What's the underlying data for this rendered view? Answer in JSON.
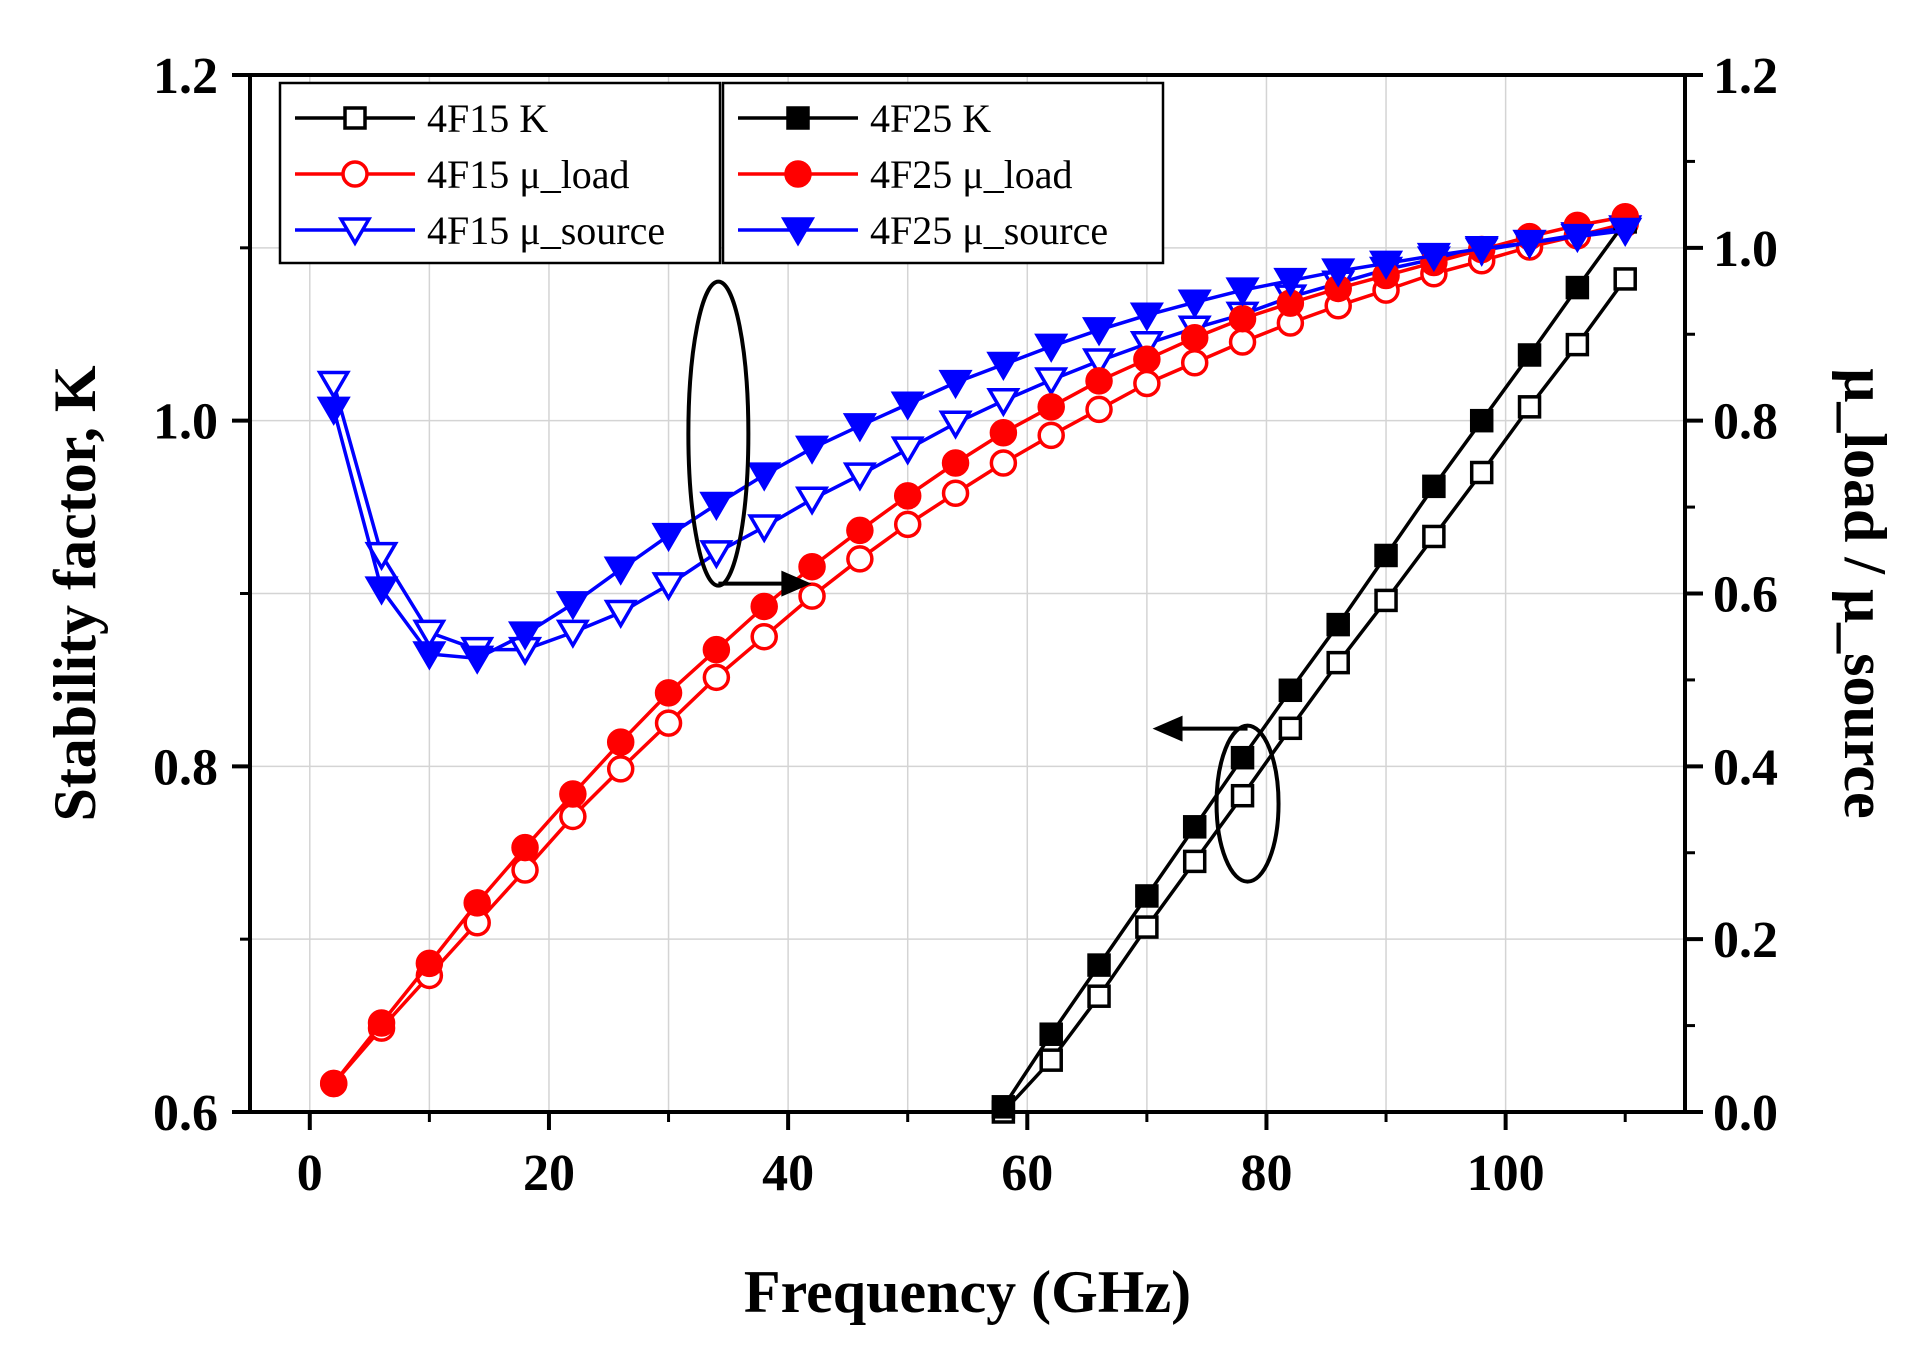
{
  "chart_data": {
    "type": "line",
    "xlabel": "Frequency (GHz)",
    "ylabel_left": "Stability factor, K",
    "ylabel_right": "μ_load / μ_source",
    "xlim": [
      -5,
      115
    ],
    "ylim_left": [
      0.6,
      1.2
    ],
    "ylim_right": [
      0.0,
      1.2
    ],
    "x_ticks": [
      "0",
      "20",
      "40",
      "60",
      "80",
      "100"
    ],
    "y_left_ticks": [
      "0.6",
      "0.8",
      "1.0",
      "1.2"
    ],
    "y_right_ticks": [
      "0.0",
      "0.2",
      "0.4",
      "0.6",
      "0.8",
      "1.0",
      "1.2"
    ],
    "grid": true,
    "legend_placement": "top-left",
    "series": [
      {
        "name": "4F15 K",
        "axis": "left",
        "color": "#000000",
        "marker": "square",
        "filled": false,
        "x": [
          58,
          62,
          66,
          70,
          74,
          78,
          82,
          86,
          90,
          94,
          98,
          102,
          106,
          110
        ],
        "values": [
          0.6,
          0.63,
          0.667,
          0.707,
          0.745,
          0.783,
          0.822,
          0.86,
          0.896,
          0.933,
          0.97,
          1.008,
          1.044,
          1.082
        ]
      },
      {
        "name": "4F15 μ_load",
        "axis": "right",
        "color": "#ff0000",
        "marker": "circle",
        "filled": false,
        "x": [
          2,
          6,
          10,
          14,
          18,
          22,
          26,
          30,
          34,
          38,
          42,
          46,
          50,
          54,
          58,
          62,
          66,
          70,
          74,
          78,
          82,
          86,
          90,
          94,
          98,
          102,
          106,
          110
        ],
        "values": [
          0.033,
          0.097,
          0.158,
          0.219,
          0.28,
          0.342,
          0.397,
          0.45,
          0.503,
          0.55,
          0.597,
          0.64,
          0.68,
          0.716,
          0.751,
          0.783,
          0.813,
          0.843,
          0.867,
          0.891,
          0.913,
          0.933,
          0.951,
          0.97,
          0.985,
          1.001,
          1.014,
          1.028
        ]
      },
      {
        "name": "4F15 μ_source",
        "axis": "right",
        "color": "#0000ff",
        "marker": "triangle-down",
        "filled": false,
        "x": [
          2,
          6,
          10,
          14,
          18,
          22,
          26,
          30,
          34,
          38,
          42,
          46,
          50,
          54,
          58,
          62,
          66,
          70,
          74,
          78,
          82,
          86,
          90,
          94,
          98,
          102,
          106,
          110
        ],
        "values": [
          0.843,
          0.645,
          0.555,
          0.535,
          0.535,
          0.555,
          0.578,
          0.61,
          0.647,
          0.677,
          0.709,
          0.737,
          0.767,
          0.797,
          0.823,
          0.847,
          0.869,
          0.889,
          0.907,
          0.923,
          0.943,
          0.959,
          0.975,
          0.987,
          0.997,
          1.006,
          1.015,
          1.023
        ]
      },
      {
        "name": "4F25 K",
        "axis": "left",
        "color": "#000000",
        "marker": "square",
        "filled": true,
        "x": [
          58,
          62,
          66,
          70,
          74,
          78,
          82,
          86,
          90,
          94,
          98,
          102,
          106,
          110
        ],
        "values": [
          0.603,
          0.645,
          0.685,
          0.725,
          0.765,
          0.805,
          0.844,
          0.882,
          0.922,
          0.962,
          1.0,
          1.038,
          1.077,
          1.115
        ]
      },
      {
        "name": "4F25 μ_load",
        "axis": "right",
        "color": "#ff0000",
        "marker": "circle",
        "filled": true,
        "x": [
          2,
          6,
          10,
          14,
          18,
          22,
          26,
          30,
          34,
          38,
          42,
          46,
          50,
          54,
          58,
          62,
          66,
          70,
          74,
          78,
          82,
          86,
          90,
          94,
          98,
          102,
          106,
          110
        ],
        "values": [
          0.033,
          0.103,
          0.172,
          0.242,
          0.306,
          0.368,
          0.428,
          0.485,
          0.535,
          0.585,
          0.631,
          0.673,
          0.713,
          0.751,
          0.786,
          0.816,
          0.846,
          0.871,
          0.896,
          0.918,
          0.936,
          0.953,
          0.968,
          0.983,
          0.998,
          1.013,
          1.026,
          1.036
        ]
      },
      {
        "name": "4F25 μ_source",
        "axis": "right",
        "color": "#0000ff",
        "marker": "triangle-down",
        "filled": true,
        "x": [
          2,
          6,
          10,
          14,
          18,
          22,
          26,
          30,
          34,
          38,
          42,
          46,
          50,
          54,
          58,
          62,
          66,
          70,
          74,
          78,
          82,
          86,
          90,
          94,
          98,
          102,
          106,
          110
        ],
        "values": [
          0.813,
          0.605,
          0.53,
          0.525,
          0.553,
          0.588,
          0.628,
          0.667,
          0.703,
          0.737,
          0.768,
          0.794,
          0.819,
          0.844,
          0.865,
          0.886,
          0.905,
          0.922,
          0.937,
          0.951,
          0.962,
          0.973,
          0.982,
          0.991,
          0.999,
          1.006,
          1.013,
          1.02
        ]
      }
    ],
    "annotations": [
      {
        "label": "ellipse-arrow-right",
        "target_axis": "right",
        "x": 34,
        "y_center": 0.785
      },
      {
        "label": "ellipse-arrow-left",
        "target_axis": "left",
        "x": 78,
        "y_center": 0.79
      }
    ]
  }
}
